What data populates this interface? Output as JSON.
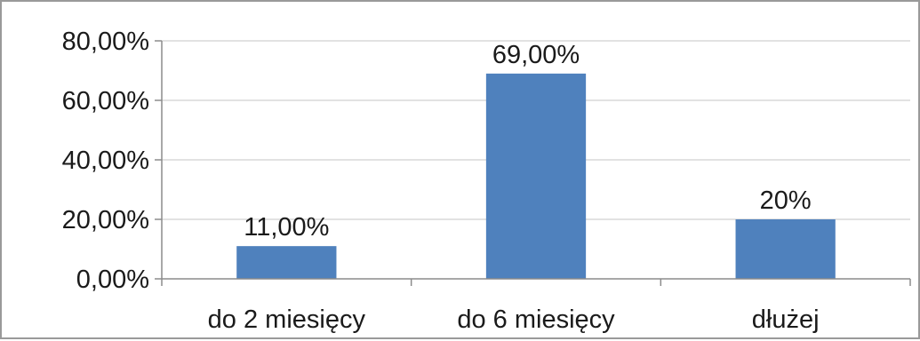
{
  "chart_data": {
    "type": "bar",
    "categories": [
      "do 2 miesięcy",
      "do 6 miesięcy",
      "dłużej"
    ],
    "values": [
      11,
      69,
      20
    ],
    "data_labels": [
      "11,00%",
      "69,00%",
      "20%"
    ],
    "y_tick_labels": [
      "0,00%",
      "20,00%",
      "40,00%",
      "60,00%",
      "80,00%"
    ],
    "y_ticks": [
      0,
      20,
      40,
      60,
      80
    ],
    "ylim": [
      0,
      80
    ],
    "title": "",
    "xlabel": "",
    "ylabel": "",
    "grid": true,
    "legend": false,
    "bar_color": "#4f81bd",
    "grid_color": "#d9d9d9",
    "axis_color": "#8c8c8c"
  }
}
